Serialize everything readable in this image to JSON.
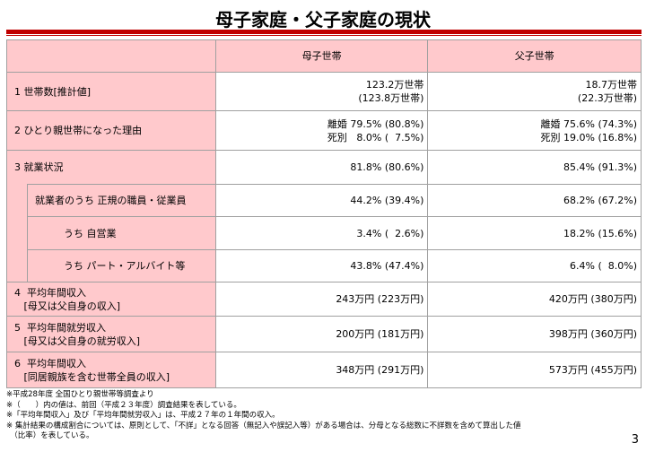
{
  "title": "母子家庭・父子家庭の現状",
  "header": {
    "mother": "母子世帯",
    "father": "父子世帯"
  },
  "rows": [
    {
      "label": "1  世帯数[推計値]",
      "mother": "123.2万世帯\n(123.8万世帯)",
      "father": "18.7万世帯\n(22.3万世帯)"
    },
    {
      "label": "2  ひとり親世帯になった理由",
      "mother": "離婚 79.5% (80.8%)\n死別   8.0% (  7.5%)",
      "father": "離婚 75.6% (74.3%)\n死別 19.0% (16.8%)"
    },
    {
      "label": "3  就業状況",
      "mother": "81.8% (80.6%)",
      "father": "85.4% (91.3%)"
    },
    {
      "label": "就業者のうち 正規の職員・従業員",
      "mother": "44.2% (39.4%)",
      "father": "68.2% (67.2%)"
    },
    {
      "label": "うち 自営業",
      "mother": "3.4% (  2.6%)",
      "father": "18.2% (15.6%)"
    },
    {
      "label": "うち パート・アルバイト等",
      "mother": "43.8% (47.4%)",
      "father": "6.4% (  8.0%)"
    },
    {
      "label": "4  平均年間収入\n   [母又は父自身の収入]",
      "mother": "243万円 (223万円)",
      "father": "420万円 (380万円)"
    },
    {
      "label": "5  平均年間就労収入\n   [母又は父自身の就労収入]",
      "mother": "200万円 (181万円)",
      "father": "398万円 (360万円)"
    },
    {
      "label": "6  平均年間収入\n   [同居親族を含む世帯全員の収入]",
      "mother": "348万円 (291万円)",
      "father": "573万円 (455万円)"
    }
  ],
  "notes": [
    "※平成28年度 全国ひとり親世帯等調査より",
    "※（　　）内の値は、前回（平成２３年度）調査結果を表している。",
    "※「平均年間収入」及び「平均年間就労収入」は、平成２７年の１年間の収入。",
    "※ 集計結果の構成割合については、原則として、「不詳」となる回答（無記入や誤記入等）がある場合は、分母となる総数に不詳数を含めて算出した値",
    "　（比率）を表している。"
  ],
  "page_number": "3"
}
